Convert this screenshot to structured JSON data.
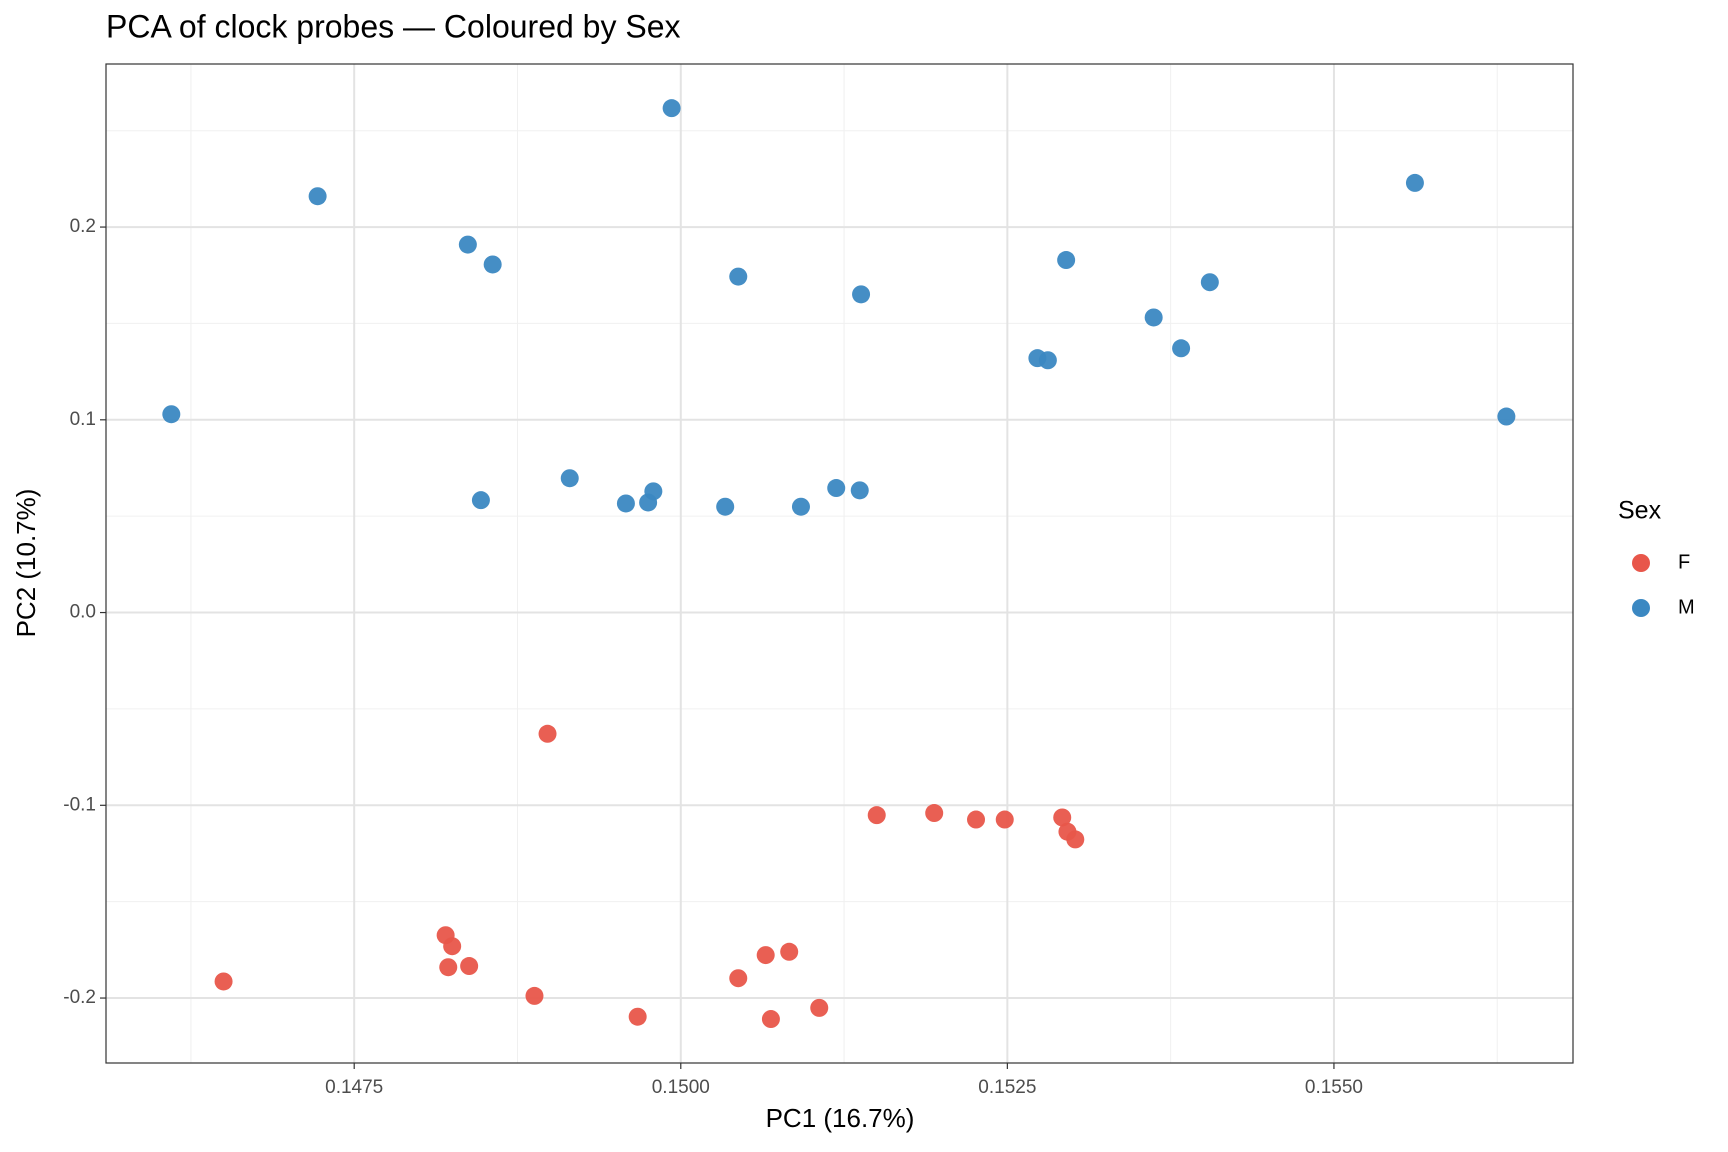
{
  "chart_data": {
    "type": "scatter",
    "title": "PCA of clock probes — Coloured by Sex",
    "x_label": "PC1 (16.7%)",
    "y_label": "PC2 (10.7%)",
    "legend_title": "Sex",
    "legend_position": "right",
    "grid": true,
    "xlim": [
      0.1456,
      0.15683
    ],
    "ylim": [
      -0.2337,
      0.2846
    ],
    "xticks": [
      0.1475,
      {
        "value": 0.15,
        "label": "0.1500"
      },
      0.1525,
      {
        "value": 0.155,
        "label": "0.1550"
      }
    ],
    "yticks": [
      -0.2,
      -0.1,
      {
        "value": 0,
        "label": "0.0"
      },
      0.1,
      0.2
    ],
    "xminor": [
      0.14625,
      0.14875,
      0.15125,
      0.15375,
      0.15625
    ],
    "yminor": [
      -0.15,
      -0.05,
      0.05,
      0.15,
      0.25
    ],
    "series": [
      {
        "name": "F",
        "color": "#e8564a",
        "x": [
          0.14898,
          0.1515,
          0.15194,
          0.15226,
          0.15248,
          0.15292,
          0.15296,
          0.15302,
          0.1482,
          0.14825,
          0.14822,
          0.14838,
          0.1465,
          0.14888,
          0.14967,
          0.15044,
          0.15065,
          0.15083,
          0.15069,
          0.15106
        ],
        "values": [
          -0.0629,
          -0.1051,
          -0.104,
          -0.1074,
          -0.1074,
          -0.1063,
          -0.1137,
          -0.1177,
          -0.1674,
          -0.1731,
          -0.184,
          -0.1834,
          -0.1914,
          -0.1989,
          -0.2097,
          -0.1897,
          -0.1777,
          -0.176,
          -0.2109,
          -0.2051
        ]
      },
      {
        "name": "M",
        "color": "#3b88c2",
        "x": [
          0.14993,
          0.14722,
          0.15562,
          0.14837,
          0.14856,
          0.15044,
          0.15138,
          0.15295,
          0.15405,
          0.15362,
          0.15383,
          0.15273,
          0.15281,
          0.1461,
          0.15632,
          0.14915,
          0.14847,
          0.14958,
          0.14975,
          0.14979,
          0.15034,
          0.15092,
          0.15119,
          0.15137
        ],
        "values": [
          0.2617,
          0.216,
          0.2229,
          0.1909,
          0.1806,
          0.1743,
          0.1651,
          0.1829,
          0.1714,
          0.1531,
          0.1371,
          0.132,
          0.1309,
          0.1029,
          0.1017,
          0.0697,
          0.0583,
          0.0566,
          0.0571,
          0.0629,
          0.0549,
          0.0549,
          0.0646,
          0.0634
        ]
      }
    ]
  }
}
